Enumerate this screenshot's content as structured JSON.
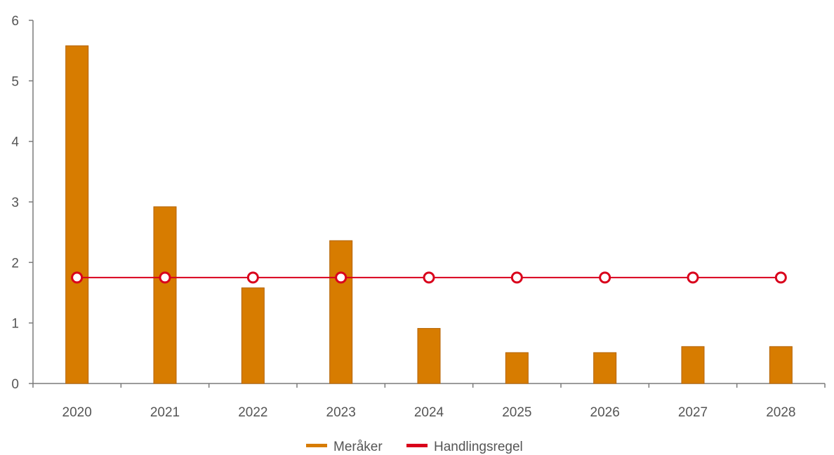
{
  "chart_data": {
    "type": "bar",
    "categories": [
      "2020",
      "2021",
      "2022",
      "2023",
      "2024",
      "2025",
      "2026",
      "2027",
      "2028"
    ],
    "series": [
      {
        "name": "Meråker",
        "kind": "bar",
        "color": "#d77c00",
        "values": [
          5.58,
          2.92,
          1.58,
          2.36,
          0.91,
          0.51,
          0.51,
          0.61,
          0.61
        ]
      },
      {
        "name": "Handlingsregel",
        "kind": "line",
        "color": "#d9001b",
        "values": [
          1.75,
          1.75,
          1.75,
          1.75,
          1.75,
          1.75,
          1.75,
          1.75,
          1.75
        ]
      }
    ],
    "yticks": [
      "0",
      "1",
      "2",
      "3",
      "4",
      "5",
      "6"
    ],
    "ylim": [
      0,
      6
    ],
    "grid": false,
    "legend_position": "bottom"
  }
}
